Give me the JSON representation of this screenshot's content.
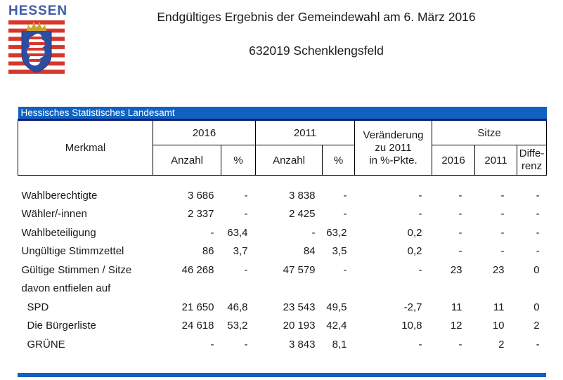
{
  "logo": {
    "region_name": "HESSEN",
    "colors": {
      "text_blue": "#3f5ca8",
      "stripe_red": "#d6362b",
      "shield_blue": "#2f4da0",
      "crown_gold": "#c9a42e"
    }
  },
  "header": {
    "title": "Endgültiges Ergebnis der Gemeindewahl am 6. März 2016",
    "subtitle": "632019 Schenklengsfeld"
  },
  "table": {
    "banner": "Hessisches Statistisches Landesamt",
    "columns": {
      "merkmal": "Merkmal",
      "group_2016": "2016",
      "group_2011": "2011",
      "change": "Veränderung\nzu 2011\nin %-Pkte.",
      "seats": "Sitze",
      "anzahl": "Anzahl",
      "percent": "%",
      "seats_2016": "2016",
      "seats_2011": "2011",
      "difference": "Diffe-\nrenz"
    },
    "rows": [
      {
        "label": "Wahlberechtigte",
        "indent": false,
        "cells": [
          "3 686",
          "-",
          "3 838",
          "-",
          "-",
          "-",
          "-",
          "-"
        ]
      },
      {
        "label": "Wähler/-innen",
        "indent": false,
        "cells": [
          "2 337",
          "-",
          "2 425",
          "-",
          "-",
          "-",
          "-",
          "-"
        ]
      },
      {
        "label": "Wahlbeteiligung",
        "indent": false,
        "cells": [
          "-",
          "63,4",
          "-",
          "63,2",
          "0,2",
          "-",
          "-",
          "-"
        ]
      },
      {
        "label": "Ungültige Stimmzettel",
        "indent": false,
        "cells": [
          "86",
          "3,7",
          "84",
          "3,5",
          "0,2",
          "-",
          "-",
          "-"
        ]
      },
      {
        "label": "Gültige Stimmen / Sitze",
        "indent": false,
        "cells": [
          "46 268",
          "-",
          "47 579",
          "-",
          "-",
          "23",
          "23",
          "0"
        ]
      },
      {
        "label": "davon entfielen auf",
        "indent": false,
        "cells": [
          "",
          "",
          "",
          "",
          "",
          "",
          "",
          ""
        ]
      },
      {
        "label": "SPD",
        "indent": true,
        "cells": [
          "21 650",
          "46,8",
          "23 543",
          "49,5",
          "-2,7",
          "11",
          "11",
          "0"
        ]
      },
      {
        "label": "Die Bürgerliste",
        "indent": true,
        "cells": [
          "24 618",
          "53,2",
          "20 193",
          "42,4",
          "10,8",
          "12",
          "10",
          "2"
        ]
      },
      {
        "label": "GRÜNE",
        "indent": true,
        "cells": [
          "-",
          "-",
          "3 843",
          "8,1",
          "-",
          "-",
          "2",
          "-"
        ]
      }
    ]
  },
  "colors": {
    "banner_blue": "#1161c0",
    "banner_edge": "#101c72",
    "text": "#1a1a1a"
  }
}
